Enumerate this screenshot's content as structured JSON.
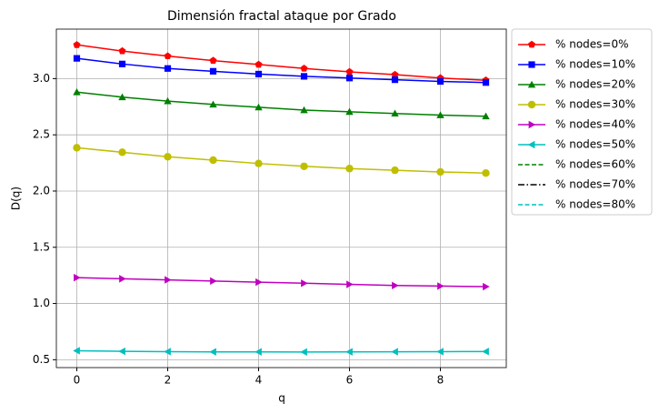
{
  "chart_data": {
    "type": "line",
    "title": "Dimensión fractal ataque por Grado",
    "xlabel": "q",
    "ylabel": "D(q)",
    "x": [
      0,
      1,
      2,
      3,
      4,
      5,
      6,
      7,
      8,
      9
    ],
    "xlim": [
      -0.45,
      9.45
    ],
    "xticks": [
      0,
      2,
      4,
      6,
      8
    ],
    "ylim": [
      0.43,
      3.44
    ],
    "yticks": [
      0.5,
      {
        "value": 1.0,
        "label": "1.0"
      },
      1.5,
      {
        "value": 2.0,
        "label": "2.0"
      },
      2.5,
      {
        "value": 3.0,
        "label": "3.0"
      }
    ],
    "grid": true,
    "legend": "outside upper right",
    "series": [
      {
        "name": "% nodes=0%",
        "color": "#ff0000",
        "marker": "pentagon",
        "dash": "solid",
        "values": [
          3.3,
          3.245,
          3.2,
          3.16,
          3.125,
          3.09,
          3.06,
          3.035,
          3.005,
          2.985
        ]
      },
      {
        "name": "% nodes=10%",
        "color": "#0000ff",
        "marker": "square",
        "dash": "solid",
        "values": [
          3.18,
          3.13,
          3.09,
          3.065,
          3.04,
          3.02,
          3.005,
          2.99,
          2.975,
          2.965
        ]
      },
      {
        "name": "% nodes=20%",
        "color": "#008000",
        "marker": "triangle-up",
        "dash": "solid",
        "values": [
          2.88,
          2.835,
          2.8,
          2.77,
          2.745,
          2.72,
          2.705,
          2.69,
          2.675,
          2.665
        ]
      },
      {
        "name": "% nodes=30%",
        "color": "#bfbf00",
        "marker": "circle",
        "dash": "solid",
        "values": [
          2.385,
          2.345,
          2.305,
          2.275,
          2.245,
          2.22,
          2.2,
          2.185,
          2.17,
          2.16
        ]
      },
      {
        "name": "% nodes=40%",
        "color": "#bf00bf",
        "marker": "triangle-right",
        "dash": "solid",
        "values": [
          1.23,
          1.22,
          1.21,
          1.2,
          1.19,
          1.18,
          1.17,
          1.16,
          1.155,
          1.15
        ]
      },
      {
        "name": "% nodes=50%",
        "color": "#00bfbf",
        "marker": "triangle-left",
        "dash": "solid",
        "values": [
          0.58,
          0.575,
          0.572,
          0.57,
          0.57,
          0.569,
          0.57,
          0.571,
          0.572,
          0.573
        ]
      },
      {
        "name": "% nodes=60%",
        "color": "#008000",
        "marker": "none",
        "dash": "dashed",
        "values": [
          null,
          null,
          null,
          null,
          null,
          null,
          null,
          null,
          null,
          null
        ]
      },
      {
        "name": "% nodes=70%",
        "color": "#000000",
        "marker": "none",
        "dash": "dashdot",
        "values": [
          null,
          null,
          null,
          null,
          null,
          null,
          null,
          null,
          null,
          null
        ]
      },
      {
        "name": "% nodes=80%",
        "color": "#00bfbf",
        "marker": "none",
        "dash": "dashed",
        "values": [
          null,
          null,
          null,
          null,
          null,
          null,
          null,
          null,
          null,
          null
        ]
      }
    ]
  }
}
